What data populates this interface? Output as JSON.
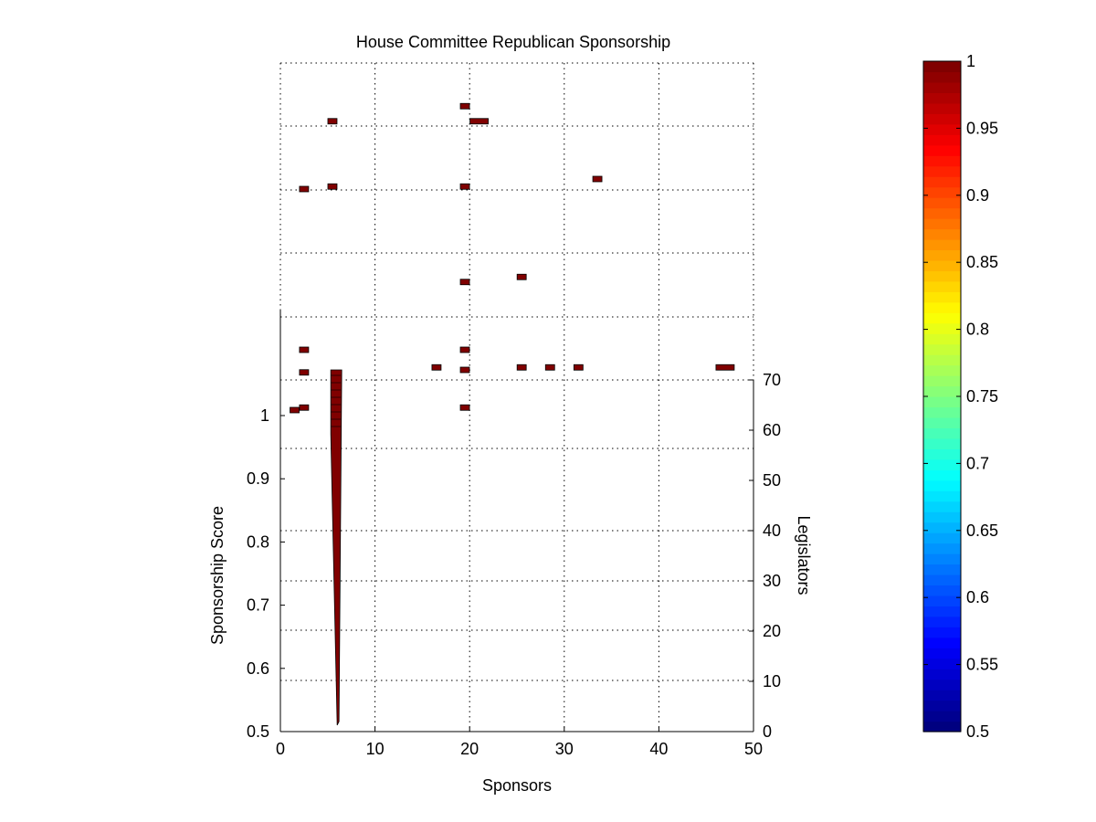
{
  "chart_data": {
    "type": "bar",
    "title": "House Committee Republican Sponsorship",
    "xlabel": "Sponsors",
    "ylabel_left": "Sponsorship Score",
    "ylabel_right": "Legislators",
    "xlim": [
      0,
      50
    ],
    "ylim_left": [
      0.5,
      1
    ],
    "ylim_right": [
      0,
      70
    ],
    "x_ticks": [
      "0",
      "10",
      "20",
      "30",
      "40",
      "50"
    ],
    "y_left_ticks": [
      "0.5",
      "0.6",
      "0.7",
      "0.8",
      "0.9",
      "1"
    ],
    "y_right_ticks": [
      "0",
      "10",
      "20",
      "30",
      "40",
      "50",
      "60",
      "70"
    ],
    "grid": true,
    "colorbar": {
      "colormap": "jet",
      "range": [
        0.5,
        1
      ],
      "ticks": [
        "0.5",
        "0.55",
        "0.6",
        "0.65",
        "0.7",
        "0.75",
        "0.8",
        "0.85",
        "0.9",
        "0.95",
        "1"
      ]
    },
    "bar_color": "#800000",
    "spike": {
      "x": 6,
      "legislators_range": [
        2,
        72
      ],
      "description_values": [
        {
          "legislators": 72,
          "score": 1
        },
        {
          "legislators": 40,
          "score": 1
        },
        {
          "legislators": 2,
          "score": 1
        }
      ]
    },
    "points": [
      {
        "sponsors": 1.5,
        "legislators": 64,
        "score": 1
      },
      {
        "sponsors": 2.5,
        "legislators": 64.5,
        "score": 1
      },
      {
        "sponsors": 2.5,
        "legislators": 71.5,
        "score": 1
      },
      {
        "sponsors": 2.5,
        "legislators": 76,
        "score": 1
      },
      {
        "sponsors": 2.5,
        "legislators": 108,
        "score": 1
      },
      {
        "sponsors": 5.5,
        "legislators": 108.5,
        "score": 1
      },
      {
        "sponsors": 5.5,
        "legislators": 121.5,
        "score": 1
      },
      {
        "sponsors": 16.5,
        "legislators": 72.5,
        "score": 1
      },
      {
        "sponsors": 19.5,
        "legislators": 64.5,
        "score": 1
      },
      {
        "sponsors": 19.5,
        "legislators": 72,
        "score": 1
      },
      {
        "sponsors": 19.5,
        "legislators": 76,
        "score": 1
      },
      {
        "sponsors": 19.5,
        "legislators": 89.5,
        "score": 1
      },
      {
        "sponsors": 19.5,
        "legislators": 108.5,
        "score": 1
      },
      {
        "sponsors": 19.5,
        "legislators": 124.5,
        "score": 1
      },
      {
        "sponsors": 21,
        "legislators": 121.5,
        "score": 1
      },
      {
        "sponsors": 25.5,
        "legislators": 72.5,
        "score": 1
      },
      {
        "sponsors": 25.5,
        "legislators": 90.5,
        "score": 1
      },
      {
        "sponsors": 28.5,
        "legislators": 72.5,
        "score": 1
      },
      {
        "sponsors": 31.5,
        "legislators": 72.5,
        "score": 1
      },
      {
        "sponsors": 33.5,
        "legislators": 110,
        "score": 1
      },
      {
        "sponsors": 47,
        "legislators": 72.5,
        "score": 1
      }
    ]
  }
}
